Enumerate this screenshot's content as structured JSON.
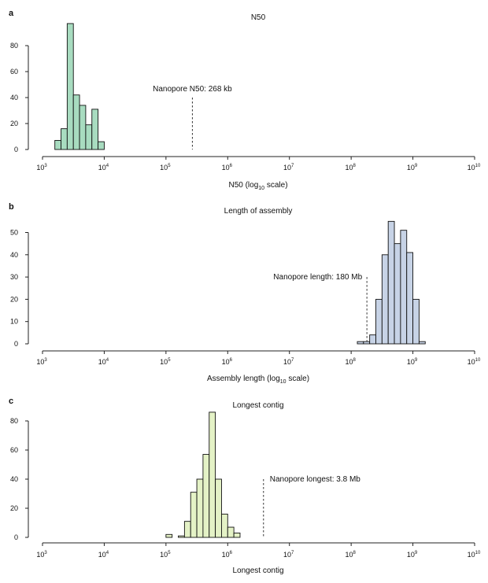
{
  "chart_data": [
    {
      "type": "bar",
      "panel": "a",
      "title": "N50",
      "xlabel": "N50 (log10 scale)",
      "xlabel_main": "N50 (log",
      "xlabel_sub": "10",
      "xlabel_tail": " scale)",
      "x_scale": "log10",
      "xlim_exponents": [
        3,
        10
      ],
      "xtick_exponents": [
        "3",
        "4",
        "5",
        "6",
        "7",
        "8",
        "9",
        "10"
      ],
      "ylim": [
        0,
        97
      ],
      "yticks": [
        "0",
        "20",
        "40",
        "60",
        "80"
      ],
      "ytick_values": [
        0,
        20,
        40,
        60,
        80
      ],
      "color": "#a8dcc0",
      "bins_log10": [
        3.25,
        3.35,
        3.45,
        3.55,
        3.65,
        3.75,
        3.85,
        3.95,
        4.05,
        4.15
      ],
      "bin_width_log10": 0.1,
      "values": [
        7,
        16,
        97,
        42,
        34,
        19,
        31,
        6,
        0,
        0
      ],
      "annotation": {
        "text": "Nanopore N50: 268 kb",
        "x_log10": 5.428,
        "y": 40
      }
    },
    {
      "type": "bar",
      "panel": "b",
      "title": "Length of assembly",
      "xlabel": "Assembly length (log10 scale)",
      "xlabel_main": "Assembly length (log",
      "xlabel_sub": "10",
      "xlabel_tail": " scale)",
      "x_scale": "log10",
      "xlim_exponents": [
        3,
        10
      ],
      "xtick_exponents": [
        "3",
        "4",
        "5",
        "6",
        "7",
        "8",
        "9",
        "10"
      ],
      "ylim": [
        0,
        56
      ],
      "yticks": [
        "0",
        "10",
        "20",
        "30",
        "40",
        "50"
      ],
      "ytick_values": [
        0,
        10,
        20,
        30,
        40,
        50
      ],
      "color": "#c7d3e6",
      "bins_log10": [
        8.15,
        8.25,
        8.35,
        8.45,
        8.55,
        8.65,
        8.75,
        8.85,
        8.95,
        9.05,
        9.15
      ],
      "bin_width_log10": 0.1,
      "values": [
        1,
        1,
        4,
        20,
        40,
        55,
        45,
        51,
        41,
        20,
        1
      ],
      "annotation": {
        "text": "Nanopore length: 180 Mb",
        "x_log10": 8.255,
        "y": 30
      }
    },
    {
      "type": "bar",
      "panel": "c",
      "title": "Longest contig",
      "xlabel": "Longest contig",
      "xlabel_main": "Longest contig",
      "xlabel_sub": "",
      "xlabel_tail": "",
      "x_scale": "log10",
      "xlim_exponents": [
        3,
        10
      ],
      "xtick_exponents": [
        "3",
        "4",
        "5",
        "6",
        "7",
        "8",
        "9",
        "10"
      ],
      "ylim": [
        0,
        87
      ],
      "yticks": [
        "0",
        "20",
        "40",
        "60",
        "80"
      ],
      "ytick_values": [
        0,
        20,
        40,
        60,
        80
      ],
      "color": "#e4f2c6",
      "bins_log10": [
        5.05,
        5.15,
        5.25,
        5.35,
        5.45,
        5.55,
        5.65,
        5.75,
        5.85,
        5.95,
        6.05,
        6.15
      ],
      "bin_width_log10": 0.1,
      "values": [
        2,
        0,
        1,
        11,
        31,
        40,
        57,
        86,
        40,
        16,
        7,
        3
      ],
      "annotation": {
        "text": "Nanopore longest: 3.8 Mb",
        "x_log10": 6.58,
        "y": 40
      }
    }
  ]
}
